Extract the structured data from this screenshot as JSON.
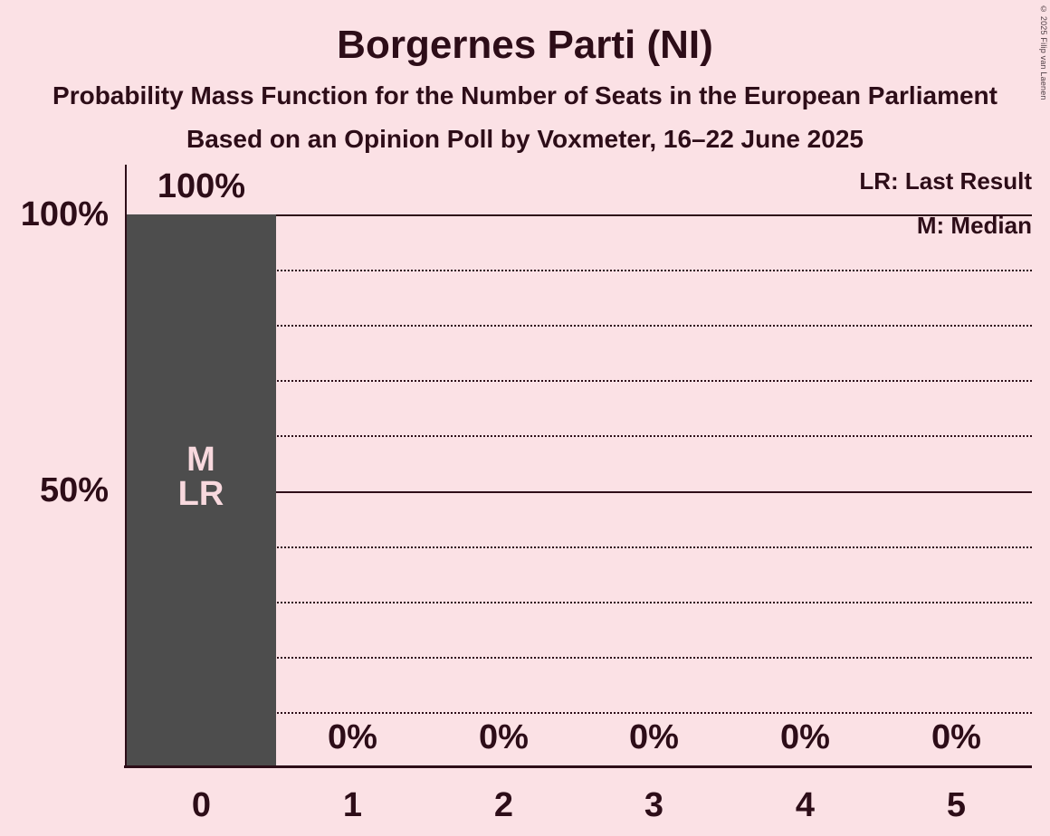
{
  "title": "Borgernes Parti (NI)",
  "subtitle": "Probability Mass Function for the Number of Seats in the European Parliament",
  "poll_line": "Based on an Opinion Poll by Voxmeter, 16–22 June 2025",
  "copyright": "© 2025 Filip van Laenen",
  "legend": {
    "lr": "LR: Last Result",
    "m": "M: Median"
  },
  "y_axis": {
    "labels": [
      "100%",
      "50%"
    ]
  },
  "chart_data": {
    "type": "bar",
    "title": "Borgernes Parti (NI)",
    "categories": [
      "0",
      "1",
      "2",
      "3",
      "4",
      "5"
    ],
    "values": [
      100,
      0,
      0,
      0,
      0,
      0
    ],
    "value_labels": [
      "100%",
      "0%",
      "0%",
      "0%",
      "0%",
      "0%"
    ],
    "ylim": [
      0,
      100
    ],
    "ytick_labels": [
      "100%",
      "50%"
    ],
    "grid": {
      "solid_at_percent": [
        50,
        100
      ],
      "dotted_every_percent": 10
    },
    "annotations": {
      "bar_index": 0,
      "labels": [
        "M",
        "LR"
      ],
      "median_seats": 0,
      "last_result_seats": 0
    },
    "legend_position": "top-right"
  },
  "colors": {
    "background": "#fbe1e5",
    "bar": "#4d4d4d",
    "text": "#2d0d18",
    "bar_label": "#f8d9de"
  }
}
